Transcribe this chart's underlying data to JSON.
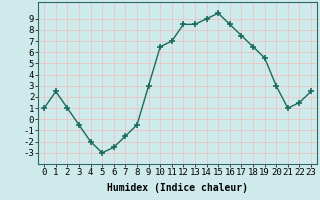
{
  "x": [
    0,
    1,
    2,
    3,
    4,
    5,
    6,
    7,
    8,
    9,
    10,
    11,
    12,
    13,
    14,
    15,
    16,
    17,
    18,
    19,
    20,
    21,
    22,
    23
  ],
  "y": [
    1.0,
    2.5,
    1.0,
    -0.5,
    -2.0,
    -3.0,
    -2.5,
    -1.5,
    -0.5,
    3.0,
    6.5,
    7.0,
    8.5,
    8.5,
    9.0,
    9.5,
    8.5,
    7.5,
    6.5,
    5.5,
    3.0,
    1.0,
    1.5,
    2.5
  ],
  "line_color": "#1a6b5a",
  "marker": "+",
  "marker_size": 4.0,
  "linewidth": 1.0,
  "xlabel": "Humidex (Indice chaleur)",
  "ylabel": "",
  "title": "",
  "xlim": [
    -0.5,
    23.5
  ],
  "ylim": [
    -4,
    10.5
  ],
  "yticks": [
    -3,
    -2,
    -1,
    0,
    1,
    2,
    3,
    4,
    5,
    6,
    7,
    8,
    9
  ],
  "xticks": [
    0,
    1,
    2,
    3,
    4,
    5,
    6,
    7,
    8,
    9,
    10,
    11,
    12,
    13,
    14,
    15,
    16,
    17,
    18,
    19,
    20,
    21,
    22,
    23
  ],
  "background_color": "#ceeaea",
  "grid_color": "#e8c8c8",
  "xlabel_fontsize": 7,
  "tick_fontsize": 6.5
}
